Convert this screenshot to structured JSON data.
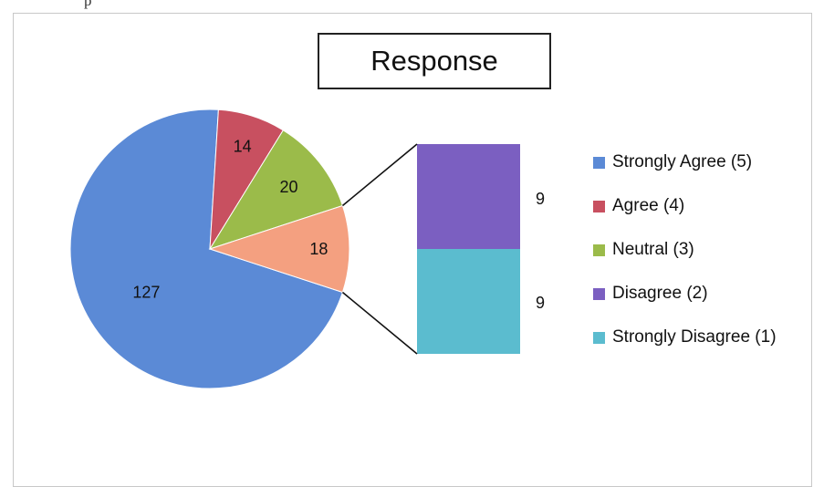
{
  "page_header_fragment": "p",
  "chart_data": {
    "type": "pie",
    "title": "Response",
    "slices": [
      {
        "label": "Strongly Agree (5)",
        "value": 127,
        "color": "#5b8ad6"
      },
      {
        "label": "Agree (4)",
        "value": 14,
        "color": "#c85060"
      },
      {
        "label": "Neutral (3)",
        "value": 20,
        "color": "#9bbb4a"
      },
      {
        "label": "Disagree (2)",
        "value": 9,
        "color": "#7b5fc1"
      },
      {
        "label": "Strongly Disagree (1)",
        "value": 9,
        "color": "#5bbccf"
      }
    ],
    "combined_slice": {
      "value": 18,
      "color": "#f4a080",
      "components": [
        "Disagree (2)",
        "Strongly Disagree (1)"
      ]
    },
    "bar_of_pie_values": [
      9,
      9
    ],
    "legend_position": "right"
  }
}
